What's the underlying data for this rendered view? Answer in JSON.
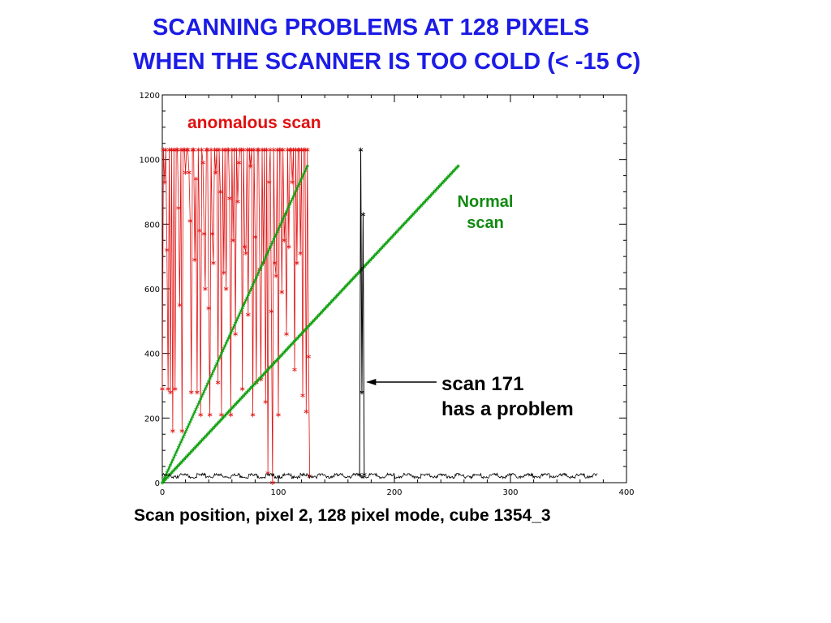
{
  "title_line1": "SCANNING PROBLEMS AT 128 PIXELS",
  "title_line2": "WHEN THE SCANNER IS TOO COLD (< -15 C)",
  "caption": "Scan position, pixel 2, 128 pixel mode, cube 1354_3",
  "annotations": {
    "anomalous": "anomalous scan",
    "normal_line1": "Normal",
    "normal_line2": "scan",
    "problem_line1": "scan 171",
    "problem_line2": "has a problem"
  },
  "colors": {
    "title": "#1c1ce6",
    "anomalous": "#e01010",
    "normal": "#10a010",
    "baseline": "#000000"
  },
  "chart_data": {
    "type": "line",
    "xlim": [
      0,
      400
    ],
    "ylim": [
      0,
      1200
    ],
    "xticks": [
      "0",
      "100",
      "200",
      "300",
      "400"
    ],
    "yticks": [
      "0",
      "200",
      "400",
      "600",
      "800",
      "1000",
      "1200"
    ],
    "grid": false,
    "series": [
      {
        "name": "anomalous scan",
        "color": "#e01010",
        "marker": "asterisk",
        "x": [
          0,
          1,
          2,
          3,
          4,
          5,
          6,
          7,
          8,
          9,
          10,
          11,
          12,
          13,
          14,
          15,
          16,
          17,
          18,
          19,
          20,
          21,
          22,
          23,
          24,
          25,
          26,
          27,
          28,
          29,
          30,
          31,
          32,
          33,
          34,
          35,
          36,
          37,
          38,
          39,
          40,
          41,
          42,
          43,
          44,
          45,
          46,
          47,
          48,
          49,
          50,
          51,
          52,
          53,
          54,
          55,
          56,
          57,
          58,
          59,
          60,
          61,
          62,
          63,
          64,
          65,
          66,
          67,
          68,
          69,
          70,
          71,
          72,
          73,
          74,
          75,
          76,
          77,
          78,
          79,
          80,
          81,
          82,
          83,
          84,
          85,
          86,
          87,
          88,
          89,
          90,
          91,
          92,
          93,
          94,
          95,
          96,
          97,
          98,
          99,
          100,
          101,
          102,
          103,
          104,
          105,
          106,
          107,
          108,
          109,
          110,
          111,
          112,
          113,
          114,
          115,
          116,
          117,
          118,
          119,
          120,
          121,
          122,
          123,
          124,
          125,
          126,
          127
        ],
        "y": [
          290,
          1030,
          930,
          1030,
          720,
          290,
          1030,
          280,
          1030,
          160,
          1030,
          290,
          1030,
          1030,
          850,
          550,
          1030,
          160,
          1030,
          1030,
          960,
          1030,
          1030,
          960,
          810,
          280,
          1030,
          1030,
          690,
          940,
          280,
          1030,
          780,
          210,
          1030,
          990,
          770,
          600,
          1030,
          1030,
          540,
          210,
          1030,
          770,
          680,
          1030,
          960,
          1030,
          310,
          1030,
          900,
          210,
          1030,
          650,
          1030,
          600,
          1030,
          1030,
          880,
          210,
          1030,
          750,
          1030,
          460,
          1030,
          870,
          990,
          1030,
          1030,
          290,
          1030,
          730,
          710,
          1030,
          520,
          1030,
          980,
          1030,
          210,
          1030,
          760,
          310,
          1030,
          1030,
          660,
          320,
          1030,
          680,
          1030,
          250,
          1030,
          30,
          930,
          1030,
          530,
          0,
          1030,
          680,
          640,
          1030,
          210,
          1030,
          1030,
          590,
          1030,
          750,
          830,
          460,
          1030,
          730,
          1030,
          1030,
          930,
          1030,
          350,
          1030,
          680,
          1030,
          1030,
          710,
          1030,
          270,
          1030,
          1030,
          220,
          1030,
          390,
          20
        ]
      },
      {
        "name": "",
        "color": "#10a010",
        "marker": "asterisk",
        "x": [
          0,
          125
        ],
        "y": [
          0,
          980
        ]
      },
      {
        "name": "Normal scan",
        "color": "#10a010",
        "marker": "asterisk",
        "x": [
          0,
          255
        ],
        "y": [
          0,
          980
        ]
      },
      {
        "name": "scan 171",
        "color": "#000000",
        "marker": "asterisk",
        "baseline_x": [
          0,
          375
        ],
        "baseline_y": 25,
        "spike_x": [
          170,
          171,
          172,
          173,
          174
        ],
        "spike_y": [
          25,
          1030,
          280,
          830,
          25
        ]
      }
    ]
  }
}
